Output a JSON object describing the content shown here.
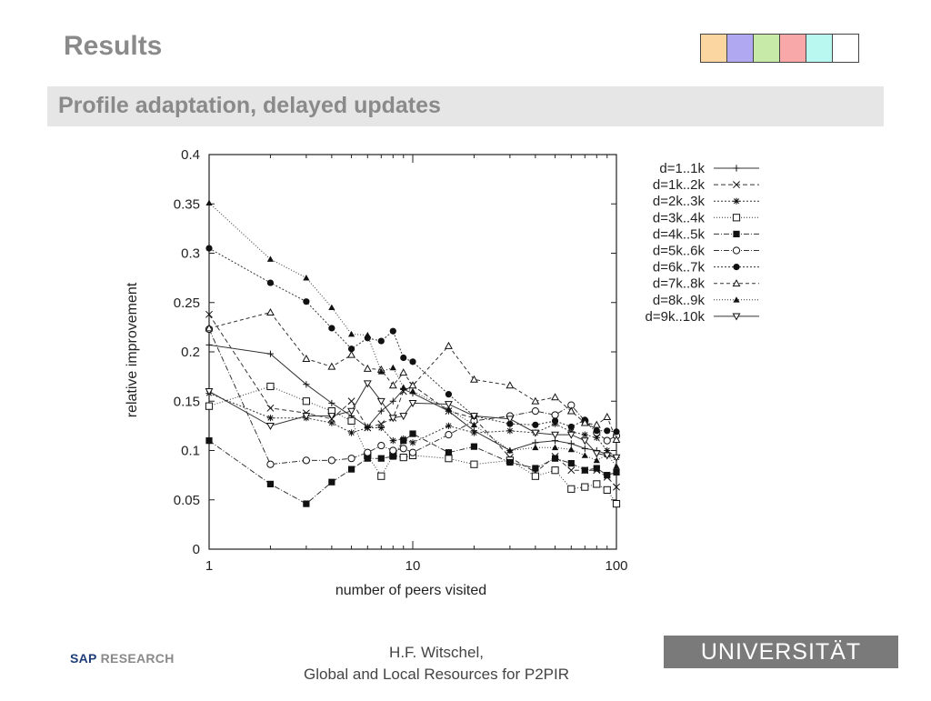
{
  "slide": {
    "title": "Results",
    "subtitle": "Profile adaptation, delayed updates",
    "swatch_colors": [
      "#fbd6a0",
      "#b0a8f0",
      "#c8eaa8",
      "#f8a8a8",
      "#b8f8f0",
      "#ffffff"
    ]
  },
  "footer": {
    "logo_sap": "SAP",
    "logo_research": "RESEARCH",
    "author": "H.F. Witschel,",
    "talk": "Global and Local Resources for P2PIR",
    "university": "UNIVERSITÄT LEIPZIG"
  },
  "chart_data": {
    "type": "line",
    "xlabel": "number of peers visited",
    "ylabel": "relative improvement",
    "xscale": "log",
    "xlim": [
      1,
      100
    ],
    "ylim": [
      0,
      0.4
    ],
    "xticks": [
      1,
      10,
      100
    ],
    "xtick_labels": [
      "1",
      "10",
      "100"
    ],
    "yticks": [
      0,
      0.05,
      0.1,
      0.15,
      0.2,
      0.25,
      0.3,
      0.35,
      0.4
    ],
    "ytick_labels": [
      "0",
      "0.05",
      "0.1",
      "0.15",
      "0.2",
      "0.25",
      "0.3",
      "0.35",
      "0.4"
    ],
    "grid": false,
    "legend_position": "right",
    "x": [
      1,
      2,
      3,
      4,
      5,
      6,
      7,
      8,
      9,
      10,
      15,
      20,
      30,
      40,
      50,
      60,
      70,
      80,
      90,
      100
    ],
    "series": [
      {
        "name": "d=1..1k",
        "marker": "plus",
        "dash": "",
        "values": [
          0.207,
          0.198,
          0.167,
          0.148,
          0.135,
          0.124,
          0.14,
          0.15,
          0.162,
          0.158,
          0.14,
          0.12,
          0.1,
          0.108,
          0.11,
          0.107,
          0.102,
          0.1,
          0.096,
          0.093
        ]
      },
      {
        "name": "d=1k..2k",
        "marker": "x",
        "dash": "5,3",
        "values": [
          0.238,
          0.143,
          0.138,
          0.132,
          0.15,
          0.123,
          0.127,
          0.133,
          0.16,
          0.166,
          0.14,
          0.133,
          0.093,
          0.078,
          0.094,
          0.08,
          0.08,
          0.08,
          0.073,
          0.063
        ]
      },
      {
        "name": "d=2k..3k",
        "marker": "star",
        "dash": "2,2",
        "values": [
          0.158,
          0.133,
          0.133,
          0.128,
          0.118,
          0.123,
          0.123,
          0.11,
          0.112,
          0.108,
          0.125,
          0.118,
          0.12,
          0.118,
          0.127,
          0.119,
          0.116,
          0.113,
          0.1,
          0.093
        ]
      },
      {
        "name": "d=3k..4k",
        "marker": "square",
        "dash": "1,2",
        "values": [
          0.145,
          0.165,
          0.15,
          0.14,
          0.13,
          0.095,
          0.074,
          0.095,
          0.093,
          0.095,
          0.092,
          0.086,
          0.09,
          0.074,
          0.08,
          0.061,
          0.063,
          0.066,
          0.06,
          0.046
        ]
      },
      {
        "name": "d=4k..5k",
        "marker": "filled-square",
        "dash": "6,2,1,2",
        "values": [
          0.11,
          0.066,
          0.046,
          0.068,
          0.081,
          0.092,
          0.092,
          0.094,
          0.11,
          0.117,
          0.098,
          0.104,
          0.088,
          0.082,
          0.092,
          0.087,
          0.08,
          0.082,
          0.075,
          0.078
        ]
      },
      {
        "name": "d=5k..6k",
        "marker": "circle",
        "dash": "6,2,1,2",
        "values": [
          0.223,
          0.086,
          0.09,
          0.09,
          0.092,
          0.098,
          0.105,
          0.1,
          0.102,
          0.098,
          0.116,
          0.13,
          0.135,
          0.14,
          0.136,
          0.146,
          0.13,
          0.118,
          0.11,
          0.115
        ]
      },
      {
        "name": "d=6k..7k",
        "marker": "filled-circle",
        "dash": "2,2",
        "values": [
          0.305,
          0.27,
          0.251,
          0.224,
          0.203,
          0.214,
          0.211,
          0.221,
          0.194,
          0.19,
          0.157,
          0.135,
          0.127,
          0.126,
          0.13,
          0.124,
          0.131,
          0.12,
          0.12,
          0.119
        ]
      },
      {
        "name": "d=7k..8k",
        "marker": "triangle",
        "dash": "4,3",
        "values": [
          0.224,
          0.24,
          0.193,
          0.185,
          0.197,
          0.183,
          0.182,
          0.166,
          0.179,
          0.166,
          0.206,
          0.172,
          0.166,
          0.15,
          0.154,
          0.14,
          0.128,
          0.126,
          0.134,
          0.111
        ]
      },
      {
        "name": "d=8k..9k",
        "marker": "filled-triangle",
        "dash": "1,2",
        "values": [
          0.351,
          0.294,
          0.275,
          0.245,
          0.218,
          0.217,
          0.18,
          0.184,
          0.164,
          0.16,
          0.142,
          0.126,
          0.1,
          0.103,
          0.103,
          0.101,
          0.095,
          0.09,
          0.096,
          0.084
        ]
      },
      {
        "name": "d=9k..10k",
        "marker": "down-triangle",
        "dash": "",
        "values": [
          0.16,
          0.125,
          0.135,
          0.135,
          0.14,
          0.168,
          0.15,
          0.133,
          0.135,
          0.148,
          0.147,
          0.135,
          0.132,
          0.118,
          0.116,
          0.116,
          0.11,
          0.097,
          0.095,
          0.093
        ]
      }
    ]
  }
}
